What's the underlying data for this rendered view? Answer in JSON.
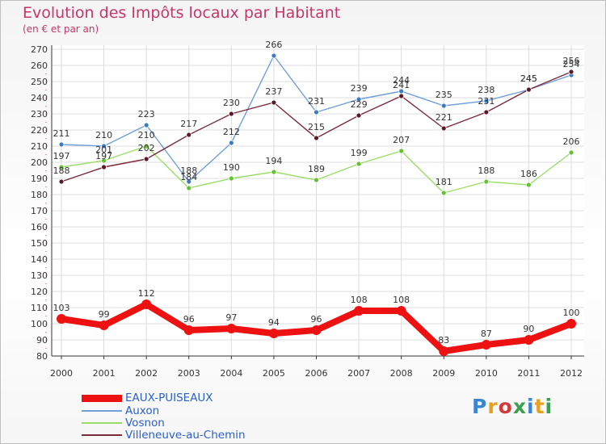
{
  "title": "Evolution des Impôts locaux par Habitant",
  "subtitle": "(en € et par an)",
  "logo_text": "Proxiti",
  "chart_data": {
    "type": "line",
    "title": "Evolution des Impôts locaux par Habitant",
    "subtitle": "(en € et par an)",
    "xlabel": "",
    "ylabel": "",
    "x": [
      "2000",
      "2001",
      "2002",
      "2003",
      "2004",
      "2005",
      "2006",
      "2007",
      "2008",
      "2009",
      "2010",
      "2011",
      "2012"
    ],
    "ylim": [
      80,
      270
    ],
    "yticks": [
      80,
      90,
      100,
      110,
      120,
      130,
      140,
      150,
      160,
      170,
      180,
      190,
      200,
      210,
      220,
      230,
      240,
      250,
      260,
      270
    ],
    "grid": true,
    "legend_position": "bottom-left",
    "series": [
      {
        "name": "EAUX-PUISEAUX",
        "color": "#ee1111",
        "values": [
          103,
          99,
          112,
          96,
          97,
          94,
          96,
          108,
          108,
          83,
          87,
          90,
          100
        ]
      },
      {
        "name": "Auxon",
        "color": "#6f9fd8",
        "values": [
          211,
          210,
          223,
          188,
          212,
          266,
          231,
          239,
          244,
          235,
          238,
          245,
          254
        ]
      },
      {
        "name": "Vosnon",
        "color": "#99dd66",
        "values": [
          197,
          201,
          210,
          184,
          190,
          194,
          189,
          199,
          207,
          181,
          188,
          186,
          206
        ]
      },
      {
        "name": "Villeneuve-au-Chemin",
        "color": "#7a2a3a",
        "values": [
          188,
          197,
          202,
          217,
          230,
          237,
          215,
          229,
          241,
          221,
          231,
          245,
          256
        ]
      }
    ]
  }
}
